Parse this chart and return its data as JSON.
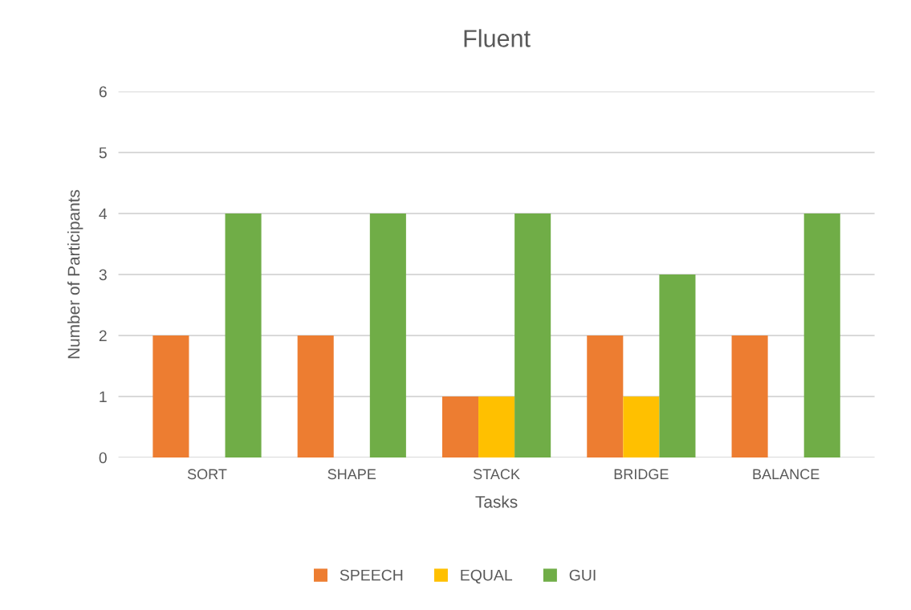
{
  "chart_data": {
    "type": "bar",
    "title": "Fluent",
    "xlabel": "Tasks",
    "ylabel": "Number of Participants",
    "categories": [
      "SORT",
      "SHAPE",
      "STACK",
      "BRIDGE",
      "BALANCE"
    ],
    "series": [
      {
        "name": "SPEECH",
        "color": "#ed7d31",
        "values": [
          2,
          2,
          1,
          2,
          2
        ]
      },
      {
        "name": "EQUAL",
        "color": "#ffc000",
        "values": [
          0,
          0,
          1,
          1,
          0
        ]
      },
      {
        "name": "GUI",
        "color": "#70ad47",
        "values": [
          4,
          4,
          4,
          3,
          4
        ]
      }
    ],
    "ylim": [
      0,
      6
    ],
    "yticks": [
      0,
      1,
      2,
      3,
      4,
      5,
      6
    ],
    "grid": "y",
    "legend": "bottom"
  }
}
